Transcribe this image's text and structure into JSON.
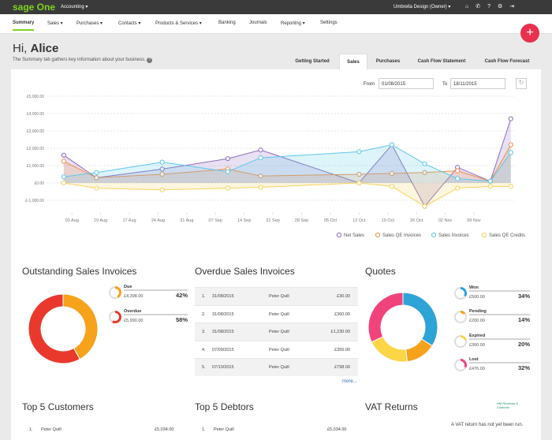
{
  "nav": {
    "logo": "sage One",
    "product": "Accounting",
    "account": "Umbrella Design (Owner)"
  },
  "menu": [
    "Summary",
    "Sales",
    "Purchases",
    "Contacts",
    "Products & Services",
    "Banking",
    "Journals",
    "Reporting",
    "Settings"
  ],
  "greeting": {
    "hi": "Hi,",
    "name": "Alice",
    "subtitle": "The Summary tab gathers key information about your business."
  },
  "tabs": [
    "Getting Started",
    "Sales",
    "Purchases",
    "Cash Flow Statement",
    "Cash Flow Forecast"
  ],
  "dates": {
    "from_label": "From",
    "from": "01/08/2015",
    "to_label": "To",
    "to": "18/11/2015"
  },
  "chart_data": [
    {
      "type": "line",
      "x": [
        -2,
        6,
        22,
        38,
        46,
        70,
        78,
        86,
        94,
        102,
        107
      ],
      "xlim": [
        -6,
        108
      ],
      "xticks": [
        {
          "value": 0,
          "label": "03 Aug"
        },
        {
          "value": 7,
          "label": "10 Aug"
        },
        {
          "value": 14,
          "label": "17 Aug"
        },
        {
          "value": 21,
          "label": "24 Aug"
        },
        {
          "value": 28,
          "label": "31 Aug"
        },
        {
          "value": 35,
          "label": "07 Sep"
        },
        {
          "value": 42,
          "label": "14 Sep"
        },
        {
          "value": 49,
          "label": "21 Sep"
        },
        {
          "value": 56,
          "label": "28 Sep"
        },
        {
          "value": 63,
          "label": "05 Oct"
        },
        {
          "value": 70,
          "label": "12 Oct"
        },
        {
          "value": 77,
          "label": "19 Oct"
        },
        {
          "value": 84,
          "label": "26 Oct"
        },
        {
          "value": 91,
          "label": "02 Nov"
        },
        {
          "value": 98,
          "label": "09 Nov"
        }
      ],
      "ylim": [
        -1700,
        5300
      ],
      "yticks": [
        {
          "value": -1000,
          "label": "£-1,000.00"
        },
        {
          "value": 0,
          "label": "£0.00"
        },
        {
          "value": 1000,
          "label": "£1,000.00"
        },
        {
          "value": 2000,
          "label": "£2,000.00"
        },
        {
          "value": 3000,
          "label": "£3,000.00"
        },
        {
          "value": 4000,
          "label": "£4,000.00"
        },
        {
          "value": 5000,
          "label": "£5,000.00"
        }
      ],
      "grid": true,
      "series": [
        {
          "name": "Net Sales",
          "color": "#8e6bbf",
          "values": [
            1600,
            300,
            800,
            1400,
            1900,
            0,
            2200,
            -1350,
            900,
            100,
            3700
          ]
        },
        {
          "name": "Sales QE Invoices",
          "color": "#f0904a",
          "values": [
            1250,
            300,
            500,
            800,
            400,
            500,
            550,
            600,
            700,
            100,
            2200
          ]
        },
        {
          "name": "Sales Invoices",
          "color": "#5cc8ea",
          "values": [
            350,
            600,
            1200,
            650,
            1450,
            1800,
            2200,
            1100,
            250,
            100,
            1750
          ]
        },
        {
          "name": "Sales QE Credits",
          "color": "#f7d35c",
          "values": [
            0,
            -300,
            -400,
            -300,
            -250,
            0,
            -200,
            -1350,
            -300,
            -200,
            -200
          ]
        }
      ]
    },
    {
      "type": "donut",
      "title": "Outstanding Sales Invoices",
      "categories": [
        "Due",
        "Overdue"
      ],
      "values": [
        42,
        58
      ],
      "value_labels": [
        "42%",
        "58%"
      ],
      "amounts": [
        "£4,398.00",
        "£5,990.00"
      ],
      "colors": [
        "#f7a21b",
        "#e8392c"
      ]
    },
    {
      "type": "donut",
      "title": "Quotes",
      "categories": [
        "Won",
        "Pending",
        "Expired",
        "Lost"
      ],
      "values": [
        34,
        14,
        20,
        32
      ],
      "value_labels": [
        "34%",
        "14%",
        "20%",
        "32%"
      ],
      "amounts": [
        "£500.00",
        "£200.00",
        "£300.00",
        "£476.00"
      ],
      "colors": [
        "#2ea3d5",
        "#f7a21b",
        "#fcd647",
        "#f0437c"
      ]
    }
  ],
  "overdue": {
    "title": "Overdue Sales Invoices",
    "rows": [
      [
        "1.",
        "31/08/2015",
        "Peter Quill",
        "£30.00"
      ],
      [
        "2.",
        "31/08/2015",
        "Peter Quill",
        "£360.00"
      ],
      [
        "3.",
        "31/08/2015",
        "Peter Quill",
        "£1,230.00"
      ],
      [
        "4.",
        "07/09/2015",
        "Peter Quill",
        "£355.00"
      ],
      [
        "5.",
        "07/10/2015",
        "Peter Quill",
        "£798.00"
      ]
    ],
    "more": "more..."
  },
  "customers": {
    "title": "Top 5 Customers",
    "rows": [
      [
        "1.",
        "Peter Quill",
        "£5,034.00"
      ]
    ]
  },
  "debtors": {
    "title": "Top 5 Debtors",
    "rows": [
      [
        "1.",
        "Peter Quill",
        "£5,034.00"
      ]
    ]
  },
  "vat": {
    "title": "VAT Returns",
    "hmrc": "HM Revenue & Customs",
    "note": "A VAT return has not yet been run."
  }
}
